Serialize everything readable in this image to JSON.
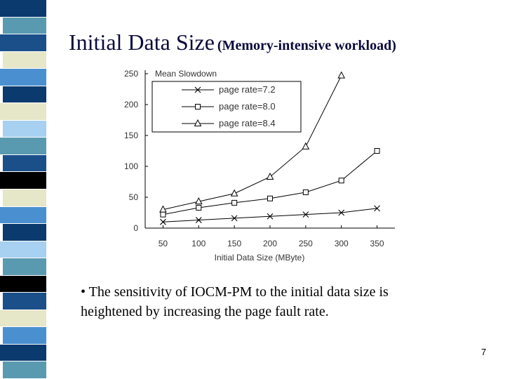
{
  "slide": {
    "title_main": "Initial Data Size",
    "title_sub": "(Memory-intensive workload)",
    "bullet": "• The sensitivity of IOCM-PM to the initial data size is heightened by increasing the page fault rate.",
    "page_number": "7"
  },
  "sidebar_colors": [
    "#0b3a6e",
    "#5a9ab0",
    "#1a4f8a",
    "#e6e6c8",
    "#4a90d0",
    "#0b3a6e",
    "#e6e6c8",
    "#a8d0f0",
    "#5a9ab0",
    "#1a4f8a",
    "#000000",
    "#e6e6c8",
    "#4a90d0",
    "#0b3a6e",
    "#a8d0f0",
    "#5a9ab0",
    "#000000",
    "#1a4f8a",
    "#e6e6c8",
    "#4a90d0",
    "#0b3a6e",
    "#5a9ab0"
  ],
  "chart_data": {
    "type": "line",
    "title": "Mean Slowdown",
    "xlabel": "Initial Data Size (MByte)",
    "ylabel": "",
    "x": [
      50,
      100,
      150,
      200,
      250,
      300,
      350
    ],
    "x_ticks": [
      "50",
      "100",
      "150",
      "200",
      "250",
      "300",
      "350"
    ],
    "y_ticks": [
      "0",
      "50",
      "100",
      "150",
      "200",
      "250"
    ],
    "xlim": [
      25,
      375
    ],
    "ylim": [
      0,
      250
    ],
    "grid": false,
    "legend_position": "top-left",
    "series": [
      {
        "name": "page rate=7.2",
        "marker": "x",
        "values": [
          10,
          13,
          16,
          19,
          22,
          25,
          32
        ]
      },
      {
        "name": "page rate=8.0",
        "marker": "square",
        "values": [
          22,
          33,
          41,
          48,
          58,
          77,
          125
        ]
      },
      {
        "name": "page rate=8.4",
        "marker": "triangle",
        "values": [
          30,
          43,
          56,
          83,
          132,
          247,
          null
        ]
      }
    ]
  }
}
